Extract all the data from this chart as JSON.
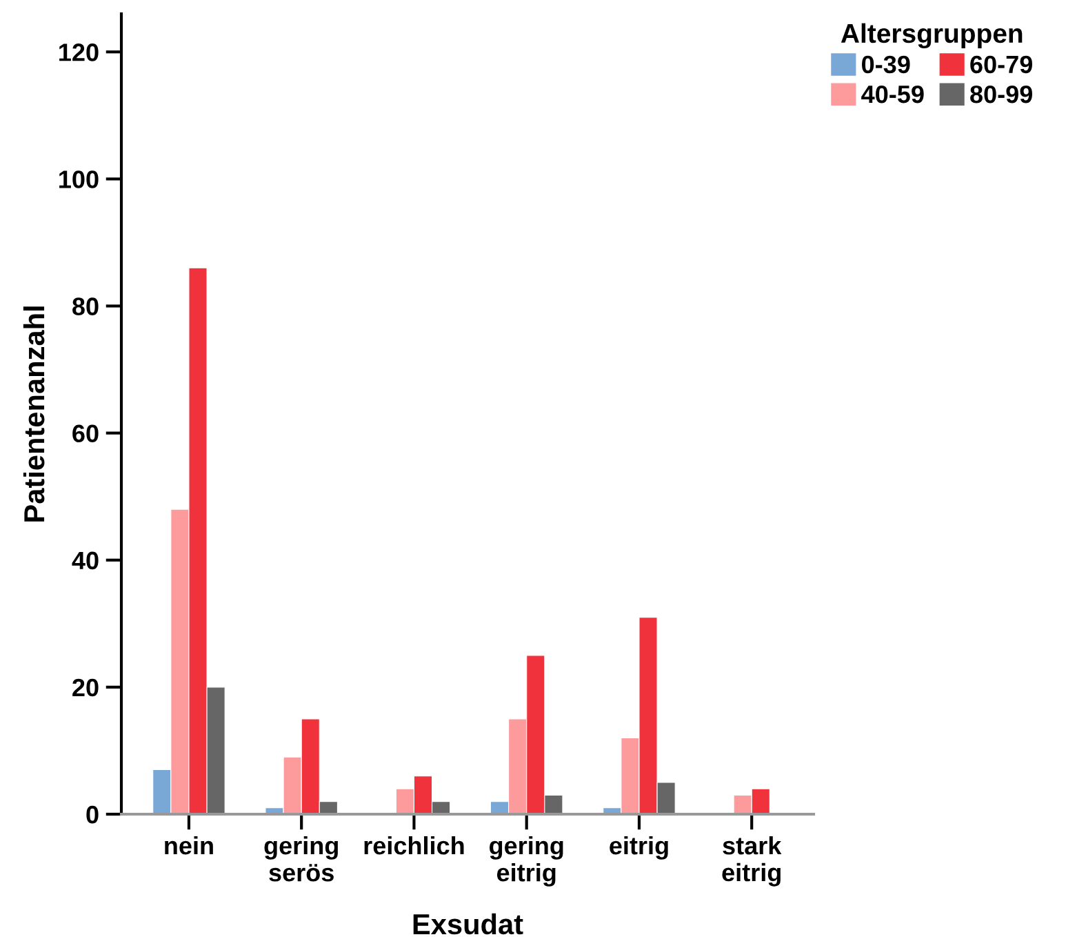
{
  "chart_data": {
    "type": "bar",
    "xlabel": "Exsudat",
    "ylabel": "Patientenanzahl",
    "legend_title": "Altersgruppen",
    "categories": [
      "nein",
      "gering\nserös",
      "reichlich",
      "gering\neitrig",
      "eitrig",
      "stark\neitrig"
    ],
    "series": [
      {
        "name": "0-39",
        "color": "#79a8d6",
        "values": [
          7,
          1,
          null,
          2,
          1,
          null
        ]
      },
      {
        "name": "40-59",
        "color": "#fc9a9c",
        "values": [
          48,
          9,
          4,
          15,
          12,
          3
        ]
      },
      {
        "name": "60-79",
        "color": "#ef323b",
        "values": [
          86,
          15,
          6,
          25,
          31,
          4
        ]
      },
      {
        "name": "80-99",
        "color": "#666666",
        "values": [
          20,
          2,
          2,
          3,
          5,
          null
        ]
      }
    ],
    "ylim": [
      0,
      126
    ],
    "yticks": [
      0,
      20,
      40,
      60,
      80,
      100,
      120
    ],
    "grid": false,
    "legend": "top right"
  }
}
